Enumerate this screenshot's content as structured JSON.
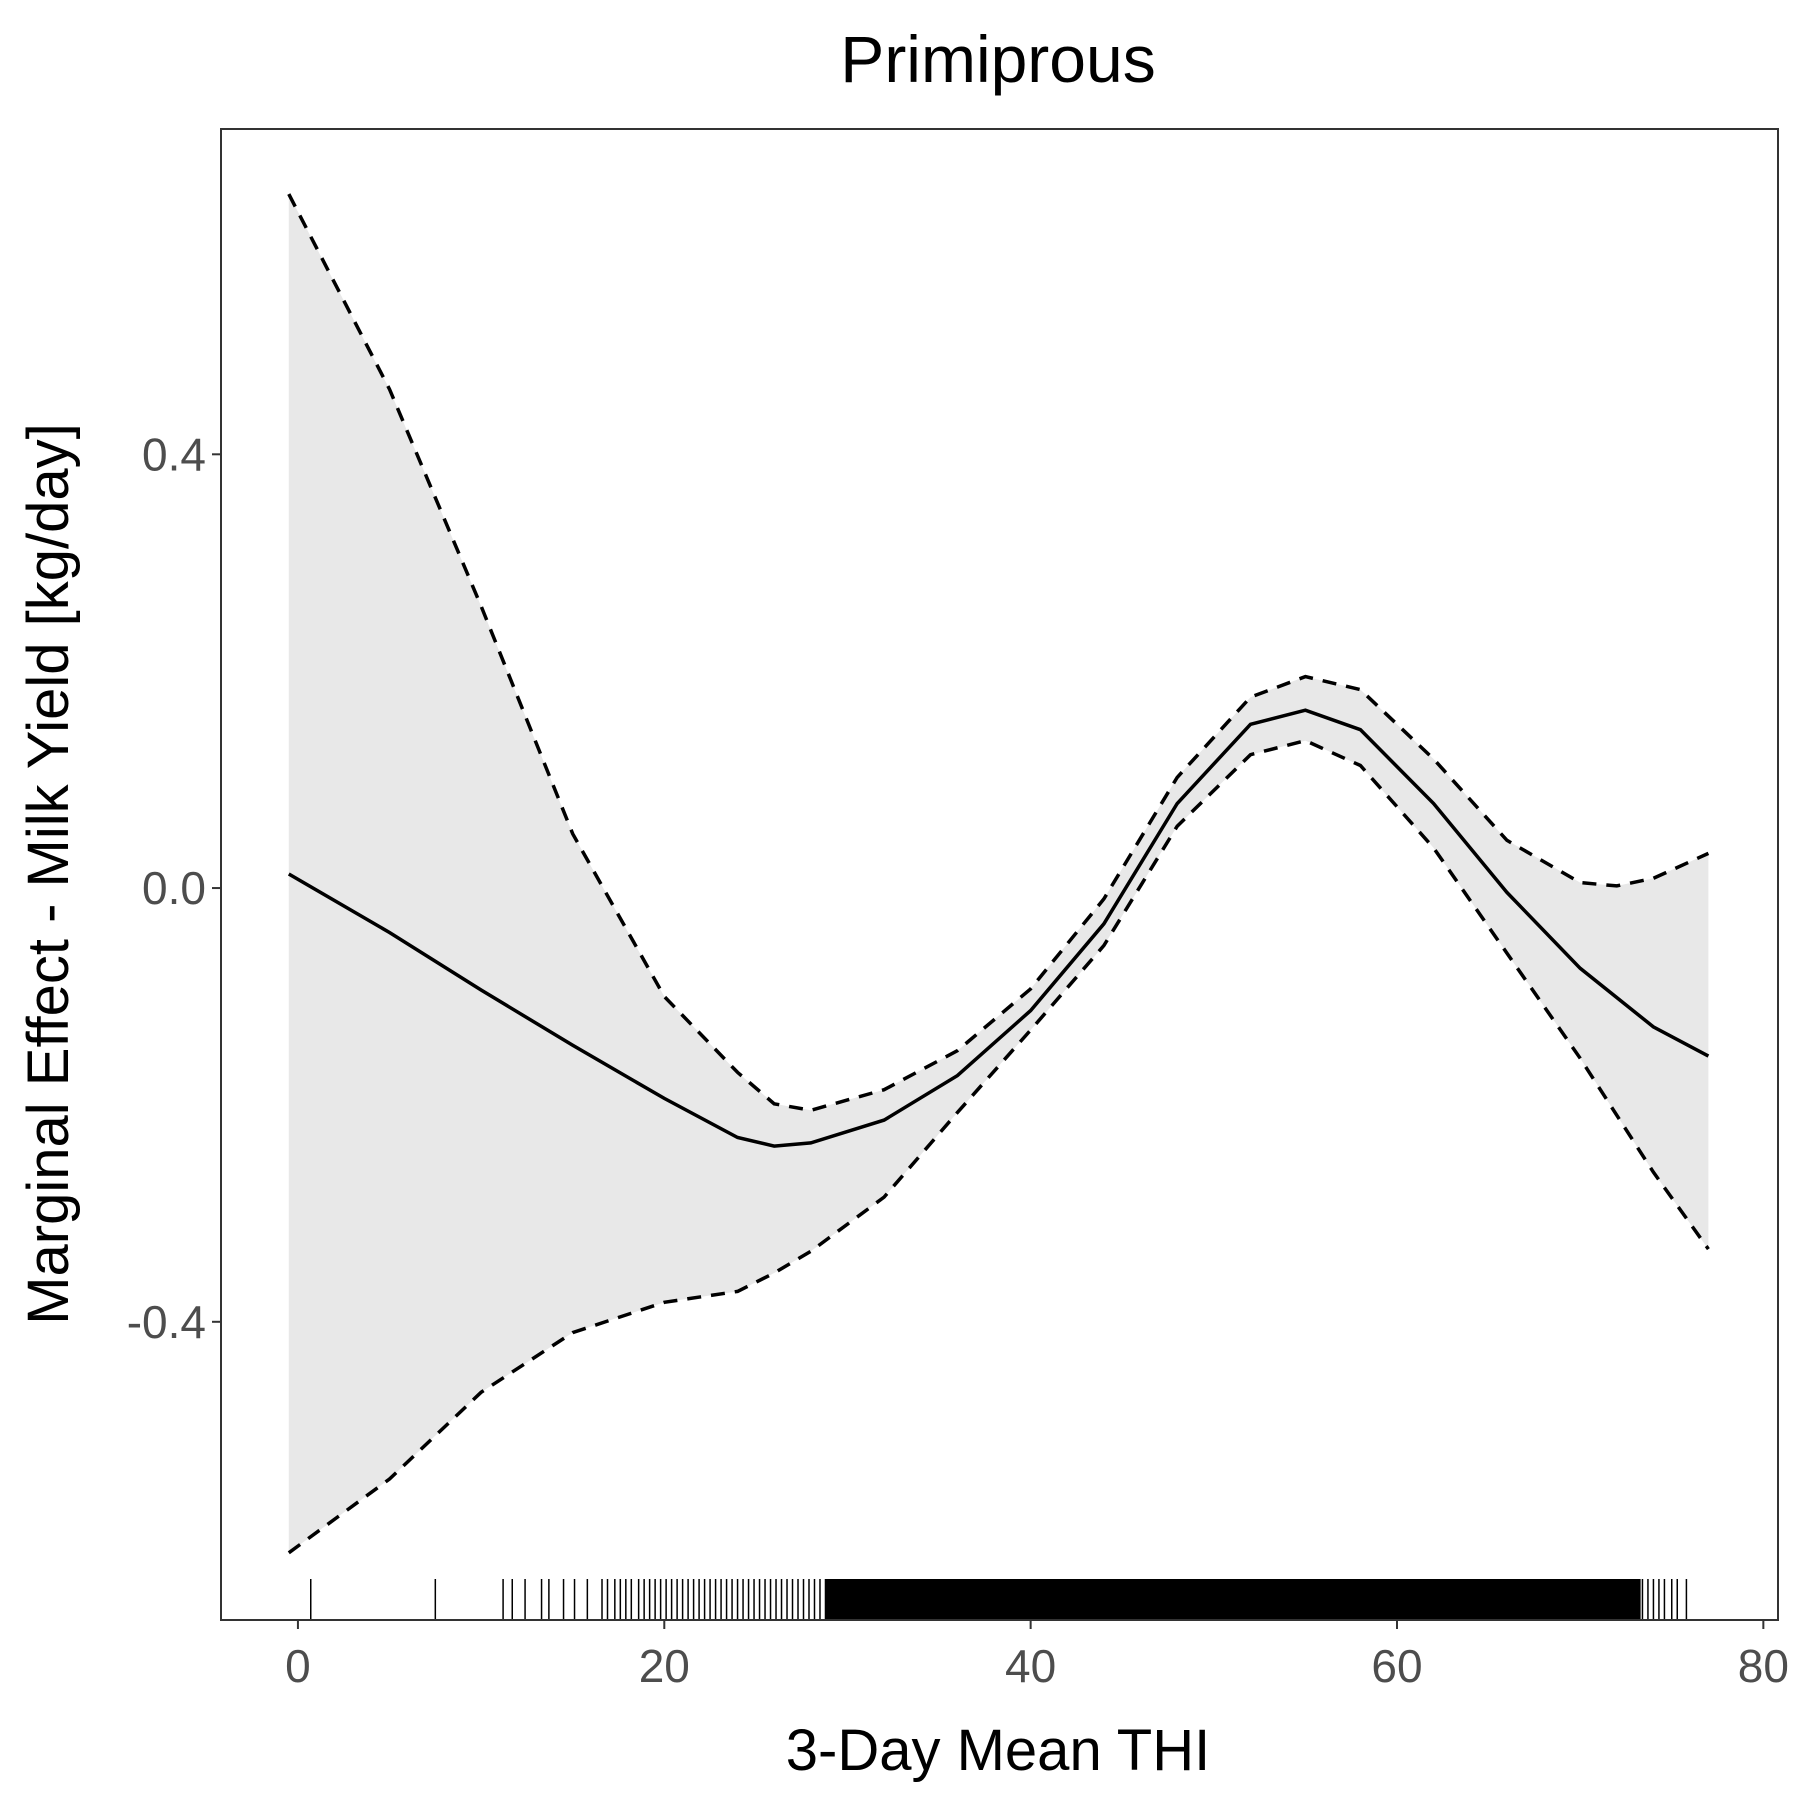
{
  "chart_data": {
    "type": "line",
    "title": "Primiprous",
    "xlabel": "3-Day Mean THI",
    "ylabel": "Marginal Effect - Milk Yield [kg/day]",
    "xlim": [
      -4.2,
      80.8
    ],
    "ylim": [
      -0.675,
      0.7
    ],
    "x_ticks": [
      0,
      20,
      40,
      60,
      80
    ],
    "x_tick_labels": [
      "0",
      "20",
      "40",
      "60",
      "80"
    ],
    "y_ticks": [
      -0.4,
      0.0,
      0.4
    ],
    "y_tick_labels": [
      "-0.4",
      "0.0",
      "0.4"
    ],
    "grid": false,
    "legend": "none",
    "colors": {
      "line": "#000000",
      "band": "#e8e8e8",
      "frame": "#333333"
    },
    "series": [
      {
        "role": "estimate",
        "style": "solid",
        "x": [
          -0.5,
          5,
          10,
          15,
          20,
          24,
          26,
          28,
          32,
          36,
          40,
          44,
          48,
          52,
          55,
          58,
          62,
          66,
          70,
          74,
          77
        ],
        "y": [
          0.013,
          -0.041,
          -0.094,
          -0.145,
          -0.194,
          -0.23,
          -0.238,
          -0.235,
          -0.214,
          -0.173,
          -0.113,
          -0.033,
          0.078,
          0.151,
          0.164,
          0.146,
          0.078,
          -0.004,
          -0.074,
          -0.128,
          -0.155
        ]
      },
      {
        "role": "upper",
        "style": "dashed",
        "x": [
          -0.5,
          5,
          10,
          15,
          20,
          24,
          26,
          28,
          32,
          36,
          40,
          44,
          48,
          52,
          55,
          58,
          62,
          66,
          70,
          72,
          74,
          77
        ],
        "y": [
          0.64,
          0.46,
          0.26,
          0.05,
          -0.1,
          -0.17,
          -0.199,
          -0.205,
          -0.186,
          -0.15,
          -0.093,
          -0.01,
          0.102,
          0.176,
          0.195,
          0.183,
          0.119,
          0.044,
          0.005,
          0.002,
          0.009,
          0.032
        ]
      },
      {
        "role": "lower",
        "style": "dashed",
        "x": [
          -0.5,
          5,
          10,
          15,
          20,
          24,
          26,
          28,
          32,
          36,
          40,
          44,
          48,
          52,
          55,
          58,
          62,
          66,
          70,
          74,
          77
        ],
        "y": [
          -0.613,
          -0.545,
          -0.465,
          -0.41,
          -0.382,
          -0.372,
          -0.355,
          -0.335,
          -0.285,
          -0.207,
          -0.131,
          -0.053,
          0.057,
          0.123,
          0.136,
          0.113,
          0.037,
          -0.06,
          -0.157,
          -0.262,
          -0.333
        ]
      }
    ],
    "rug": {
      "sparse_x": [
        0.7,
        7.5,
        11.2,
        11.7,
        12.4,
        13.3,
        13.7,
        14.5,
        15.1,
        15.8,
        16.6,
        16.9,
        17.3,
        17.6,
        17.9,
        18.2,
        18.6,
        18.9,
        19.2,
        19.5,
        19.8,
        20.1,
        20.4,
        20.7,
        21.0,
        21.3,
        21.6,
        21.9,
        22.2,
        22.5,
        22.8,
        23.1,
        23.4,
        23.7,
        24.0,
        24.3,
        24.6,
        24.9,
        25.2,
        25.5,
        25.8,
        26.1,
        26.4,
        26.7,
        27.0,
        27.3,
        27.6,
        27.9,
        28.2,
        28.5,
        28.8,
        73.4,
        73.7,
        74.0,
        74.3,
        74.6,
        75.0,
        75.3,
        75.8
      ],
      "dense_range": [
        28.8,
        73.3
      ]
    }
  }
}
